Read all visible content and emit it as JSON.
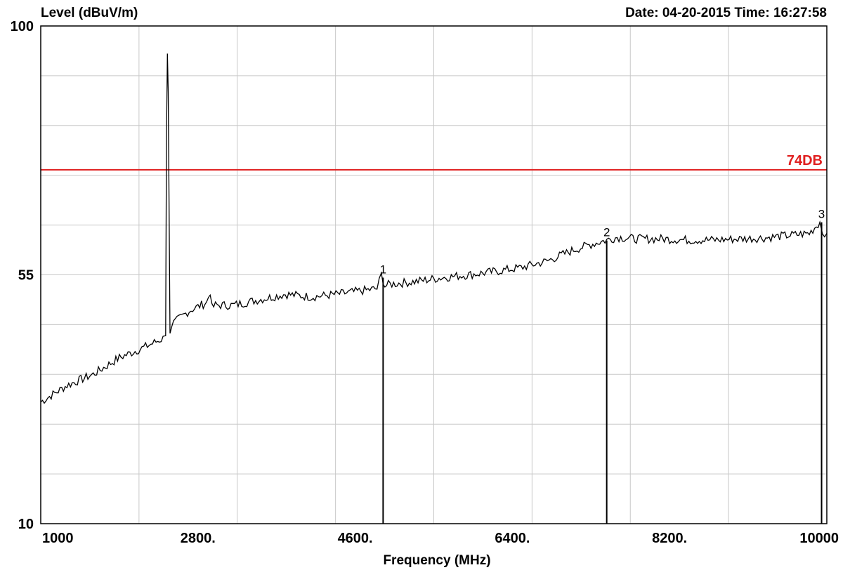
{
  "header": {
    "ylabel": "Level (dBuV/m)",
    "date_time": "Date: 04-20-2015  Time: 16:27:58"
  },
  "chart_data": {
    "type": "line",
    "title": "",
    "xlabel": "Frequency (MHz)",
    "ylabel": "Level (dBuV/m)",
    "xlim": [
      1000,
      10000
    ],
    "ylim": [
      10,
      100
    ],
    "x_tick_labels": [
      "1000",
      "2800.",
      "4600.",
      "6400.",
      "8200.",
      "10000"
    ],
    "y_tick_labels": [
      "100",
      "55",
      "10"
    ],
    "x_grid_count": 8,
    "y_grid_count": 10,
    "grid": true,
    "colors": {
      "trace": "#000000",
      "limit": "#e02020",
      "grid": "#c8c8c8",
      "frame": "#000000"
    },
    "limit_line": {
      "label": "74DB",
      "value": 74
    },
    "series": [
      {
        "x": [
          1000,
          1300,
          1600,
          1900,
          2200,
          2400,
          2430,
          2440,
          2450,
          2460,
          2480,
          2500,
          2700,
          2900,
          2940,
          2960,
          3000,
          3200,
          3500,
          3800,
          4100,
          4400,
          4850,
          4900,
          4920,
          4940,
          5000,
          5300,
          5600,
          5900,
          6200,
          6500,
          6800,
          7100,
          7300,
          7600,
          7800,
          8100,
          8400,
          8700,
          9000,
          9300,
          9600,
          9800,
          9920,
          9950,
          10000
        ],
        "y": [
          32,
          35,
          37,
          40,
          42,
          43.5,
          44,
          80,
          95,
          88,
          45,
          46,
          48.5,
          50,
          52,
          49,
          49.5,
          49.5,
          50.5,
          51.5,
          51,
          51.5,
          52.5,
          55,
          54,
          53,
          53.3,
          53.8,
          54.5,
          55,
          55.6,
          56.3,
          57.5,
          59.5,
          60.5,
          61.8,
          61.5,
          61.5,
          61.3,
          61.3,
          61.5,
          61.7,
          62.2,
          62.5,
          64.5,
          62.8,
          62.5
        ]
      }
    ],
    "markers": [
      {
        "label": "1",
        "x": 4920,
        "y": 54.5
      },
      {
        "label": "2",
        "x": 7480,
        "y": 61.2
      },
      {
        "label": "3",
        "x": 9940,
        "y": 64.5
      }
    ]
  }
}
